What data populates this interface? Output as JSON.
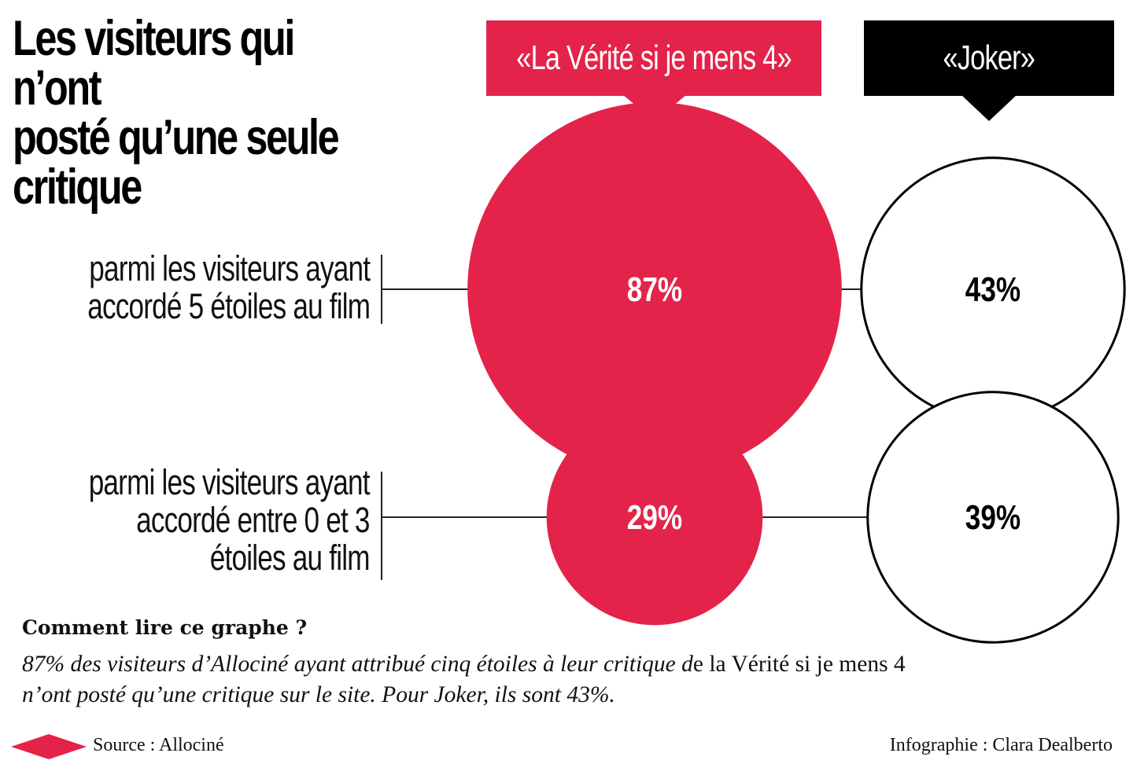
{
  "title": {
    "line1": "Les visiteurs qui n’ont",
    "line2": "posté qu’une seule",
    "line3": "critique"
  },
  "chart_data": {
    "type": "bubble",
    "series": [
      {
        "name": "«La Vérité si je mens 4»",
        "values": [
          87,
          29
        ],
        "value_labels": [
          "87%",
          "29%"
        ],
        "color": "#e4234a"
      },
      {
        "name": "«Joker»",
        "values": [
          43,
          39
        ],
        "value_labels": [
          "43%",
          "39%"
        ],
        "color": "#000000"
      }
    ],
    "rows": [
      {
        "label_lines": [
          "parmi les visiteurs ayant",
          "accordé 5 étoiles au film"
        ]
      },
      {
        "label_lines": [
          "parmi les visiteurs ayant",
          "accordé entre 0 et 3",
          "étoiles au film"
        ]
      }
    ],
    "unit": "%"
  },
  "note": {
    "heading": "Comment lire ce graphe ?",
    "line1_italic": "87% des visiteurs d’Allociné ayant attribué cinq étoiles à leur critique d",
    "line1_roman": "e la Vérité si je mens 4",
    "line2_italic": "n’ont posté qu’une critique sur le site. Pour Joker, ils sont 43%."
  },
  "footer": {
    "source": "Source : Allociné",
    "credit": "Infographie : Clara Dealberto"
  },
  "colors": {
    "accent": "#e4234a",
    "dark": "#000000"
  }
}
